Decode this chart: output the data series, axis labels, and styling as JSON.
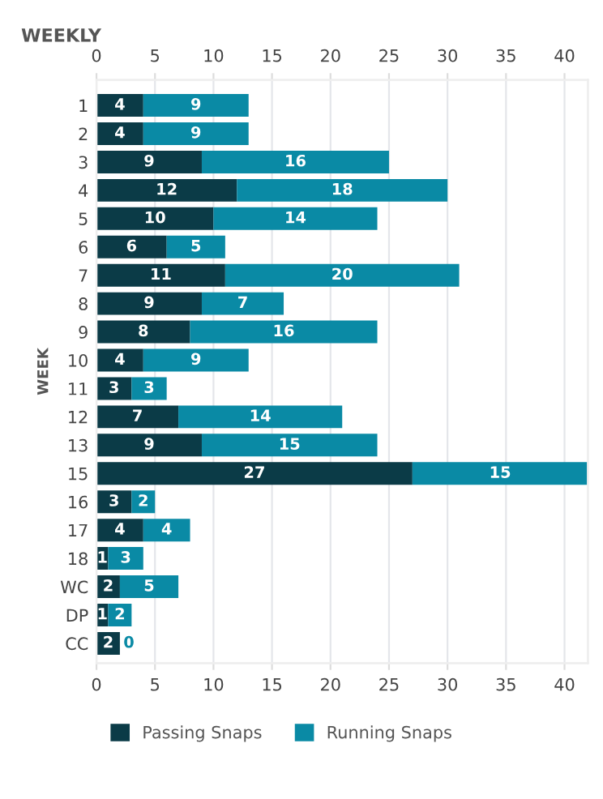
{
  "chart_data": {
    "type": "bar",
    "orientation": "horizontal",
    "stacked": true,
    "title": "WEEKLY",
    "ylabel": "WEEK",
    "categories": [
      "1",
      "2",
      "3",
      "4",
      "5",
      "6",
      "7",
      "8",
      "9",
      "10",
      "11",
      "12",
      "13",
      "15",
      "16",
      "17",
      "18",
      "WC",
      "DP",
      "CC"
    ],
    "series": [
      {
        "name": "Passing Snaps",
        "color": "#0b3b47",
        "values": [
          4,
          4,
          9,
          12,
          10,
          6,
          11,
          9,
          8,
          4,
          3,
          7,
          9,
          27,
          3,
          4,
          1,
          2,
          1,
          2
        ]
      },
      {
        "name": "Running Snaps",
        "color": "#0a8aa5",
        "values": [
          9,
          9,
          16,
          18,
          14,
          5,
          20,
          7,
          16,
          9,
          3,
          14,
          15,
          15,
          2,
          4,
          3,
          5,
          2,
          0
        ]
      }
    ],
    "xlim": [
      0,
      42
    ],
    "xticks": [
      0,
      5,
      10,
      15,
      20,
      25,
      30,
      35,
      40
    ],
    "x2lim": [
      0,
      42
    ],
    "x2ticks": [
      0,
      5,
      10,
      15,
      20,
      25,
      30,
      35,
      40
    ],
    "data_labels": true,
    "grid": "x",
    "legend": "bottom"
  }
}
